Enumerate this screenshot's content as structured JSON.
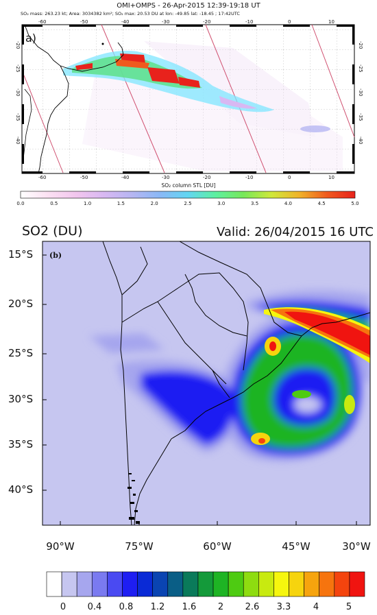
{
  "panel_a": {
    "title": "OMI+OMPS - 26-Apr-2015 12:39-19:18 UT",
    "subtitle": "SO₂ mass: 263.23 kt; Area: 3034382 km²; SO₂ max: 20.53 DU at lon: -49.85 lat: -18.45 ; 17:42UTC",
    "panel_letter": "a)",
    "lon_ticks": [
      "-60",
      "-50",
      "-40",
      "-30",
      "-20",
      "-10",
      "0",
      "10"
    ],
    "lat_ticks": [
      "-20",
      "-25",
      "-30",
      "-35",
      "-40"
    ],
    "colorbar_label": "SO₂ column STL [DU]",
    "colorbar_ticks": [
      "0.0",
      "0.5",
      "1.0",
      "1.5",
      "2.0",
      "2.5",
      "3.0",
      "3.5",
      "4.0",
      "4.5",
      "5.0"
    ],
    "colorbar_gradient": [
      "#ffffff",
      "#fbe0f2",
      "#f2c6ee",
      "#d8b8f2",
      "#b6b6f2",
      "#8ab8f6",
      "#62d6f2",
      "#5ef0a0",
      "#78e85a",
      "#cfe83a",
      "#f0b32a",
      "#f05a1e",
      "#e8221c"
    ]
  },
  "panel_b": {
    "title": "SO2 (DU)",
    "valid": "Valid: 26/04/2015  16 UTC",
    "panel_letter": "(b)",
    "lat_labels": [
      "15°S",
      "20°S",
      "25°S",
      "30°S",
      "35°S",
      "40°S"
    ],
    "lon_labels": [
      "90°W",
      "75°W",
      "60°W",
      "45°W",
      "30°W"
    ],
    "colorbar_ticks": [
      "0",
      "0.4",
      "0.8",
      "1.2",
      "1.6",
      "2",
      "2.6",
      "3.3",
      "4",
      "5"
    ],
    "colorbar_colors": [
      "#ffffff",
      "#c6c6f0",
      "#a6a6ee",
      "#7a7af0",
      "#4a4af2",
      "#1e1ef2",
      "#0a2ad6",
      "#0a44b2",
      "#0a5e86",
      "#0a7a5a",
      "#149a3a",
      "#1eb424",
      "#4ecb12",
      "#8edc10",
      "#c8ea10",
      "#f6f60e",
      "#f6d40e",
      "#f6a40e",
      "#f6740e",
      "#f4440e",
      "#f01410"
    ]
  }
}
